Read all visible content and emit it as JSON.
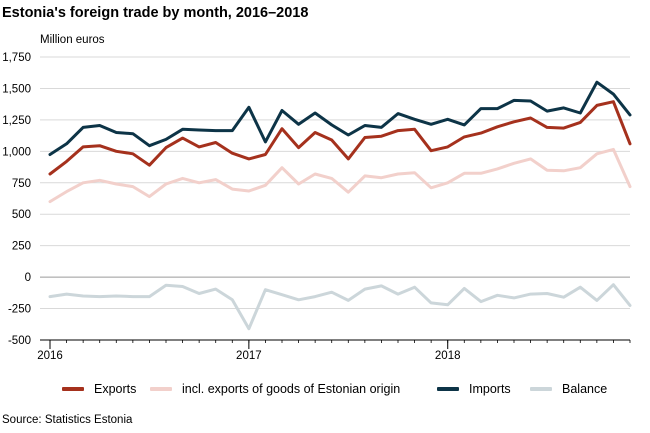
{
  "title": "Estonia's foreign trade by month, 2016–2018",
  "unit_label": "Million euros",
  "source": "Source: Statistics Estonia",
  "colors": {
    "exports": "#a5311d",
    "origin": "#f2d0cb",
    "imports": "#0d3447",
    "balance": "#ccd6da",
    "grid": "#d9d9d9",
    "axis": "#000000"
  },
  "chart_data": {
    "type": "line",
    "title": "Estonia's foreign trade by month, 2016–2018",
    "ylabel": "Million euros",
    "xlabel": "",
    "ylim": [
      -500,
      1750
    ],
    "yticks": [
      -500,
      -250,
      0,
      250,
      500,
      750,
      1000,
      1250,
      1500,
      1750
    ],
    "ytick_labels": [
      "-500",
      "-250",
      "0",
      "250",
      "500",
      "750",
      "1,000",
      "1,250",
      "1,500",
      "1,750"
    ],
    "xticks": [
      {
        "index": 0,
        "label": "2016"
      },
      {
        "index": 12,
        "label": "2017"
      },
      {
        "index": 24,
        "label": "2018"
      }
    ],
    "x": [
      "2016-01",
      "2016-02",
      "2016-03",
      "2016-04",
      "2016-05",
      "2016-06",
      "2016-07",
      "2016-08",
      "2016-09",
      "2016-10",
      "2016-11",
      "2016-12",
      "2017-01",
      "2017-02",
      "2017-03",
      "2017-04",
      "2017-05",
      "2017-06",
      "2017-07",
      "2017-08",
      "2017-09",
      "2017-10",
      "2017-11",
      "2017-12",
      "2018-01",
      "2018-02",
      "2018-03",
      "2018-04",
      "2018-05",
      "2018-06",
      "2018-07",
      "2018-08",
      "2018-09",
      "2018-10",
      "2018-11",
      "2018-12"
    ],
    "grid": true,
    "legend_position": "bottom",
    "series": [
      {
        "name": "Exports",
        "key": "exports",
        "values": [
          820,
          920,
          1035,
          1045,
          1000,
          980,
          890,
          1030,
          1105,
          1035,
          1070,
          985,
          940,
          975,
          1180,
          1030,
          1150,
          1090,
          940,
          1110,
          1120,
          1165,
          1175,
          1005,
          1035,
          1115,
          1145,
          1195,
          1235,
          1265,
          1190,
          1185,
          1230,
          1365,
          1395,
          1060
        ]
      },
      {
        "name": "incl. exports of goods of Estonian origin",
        "key": "origin",
        "values": [
          600,
          680,
          750,
          770,
          740,
          720,
          640,
          740,
          785,
          750,
          775,
          700,
          685,
          730,
          870,
          740,
          820,
          785,
          675,
          805,
          790,
          820,
          830,
          710,
          750,
          825,
          825,
          860,
          905,
          940,
          850,
          845,
          870,
          980,
          1015,
          720
        ]
      },
      {
        "name": "Imports",
        "key": "imports",
        "values": [
          975,
          1060,
          1190,
          1205,
          1150,
          1140,
          1045,
          1095,
          1175,
          1170,
          1165,
          1165,
          1350,
          1075,
          1325,
          1215,
          1305,
          1210,
          1130,
          1205,
          1190,
          1300,
          1255,
          1215,
          1255,
          1210,
          1340,
          1340,
          1405,
          1400,
          1320,
          1345,
          1305,
          1550,
          1455,
          1290
        ]
      },
      {
        "name": "Balance",
        "key": "balance",
        "values": [
          -155,
          -135,
          -150,
          -155,
          -150,
          -155,
          -155,
          -65,
          -75,
          -130,
          -95,
          -180,
          -410,
          -100,
          -140,
          -180,
          -155,
          -120,
          -185,
          -95,
          -70,
          -135,
          -80,
          -205,
          -220,
          -90,
          -195,
          -145,
          -165,
          -135,
          -130,
          -160,
          -80,
          -185,
          -60,
          -225
        ]
      }
    ]
  }
}
